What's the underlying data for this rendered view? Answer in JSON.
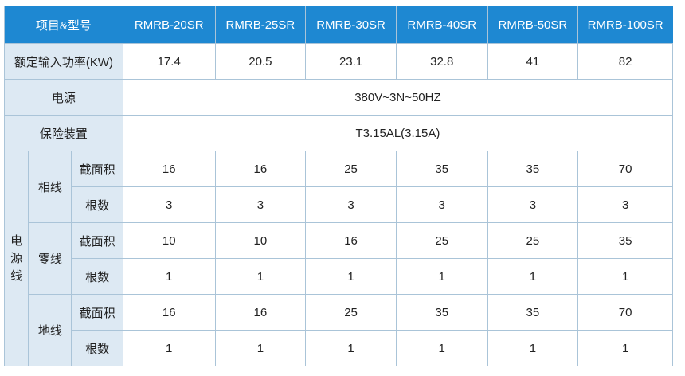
{
  "table": {
    "header": {
      "label": "项目&型号",
      "models": [
        "RMRB-20SR",
        "RMRB-25SR",
        "RMRB-30SR",
        "RMRB-40SR",
        "RMRB-50SR",
        "RMRB-100SR"
      ]
    },
    "power": {
      "label": "额定输入功率(KW)",
      "values": [
        "17.4",
        "20.5",
        "23.1",
        "32.8",
        "41",
        "82"
      ]
    },
    "supply": {
      "label": "电源",
      "value": "380V~3N~50HZ"
    },
    "fuse": {
      "label": "保险装置",
      "value": "T3.15AL(3.15A)"
    },
    "cable": {
      "label_chars": [
        "电",
        "源",
        "线"
      ],
      "groups": [
        {
          "label": "相线",
          "rows": [
            {
              "label": "截面积",
              "values": [
                "16",
                "16",
                "25",
                "35",
                "35",
                "70"
              ]
            },
            {
              "label": "根数",
              "values": [
                "3",
                "3",
                "3",
                "3",
                "3",
                "3"
              ]
            }
          ]
        },
        {
          "label": "零线",
          "rows": [
            {
              "label": "截面积",
              "values": [
                "10",
                "10",
                "16",
                "25",
                "25",
                "35"
              ]
            },
            {
              "label": "根数",
              "values": [
                "1",
                "1",
                "1",
                "1",
                "1",
                "1"
              ]
            }
          ]
        },
        {
          "label": "地线",
          "rows": [
            {
              "label": "截面积",
              "values": [
                "16",
                "16",
                "25",
                "35",
                "35",
                "70"
              ]
            },
            {
              "label": "根数",
              "values": [
                "1",
                "1",
                "1",
                "1",
                "1",
                "1"
              ]
            }
          ]
        }
      ]
    }
  },
  "colors": {
    "header_bg": "#1e88d2",
    "label_bg": "#dde9f3",
    "border": "#aac4d8"
  }
}
